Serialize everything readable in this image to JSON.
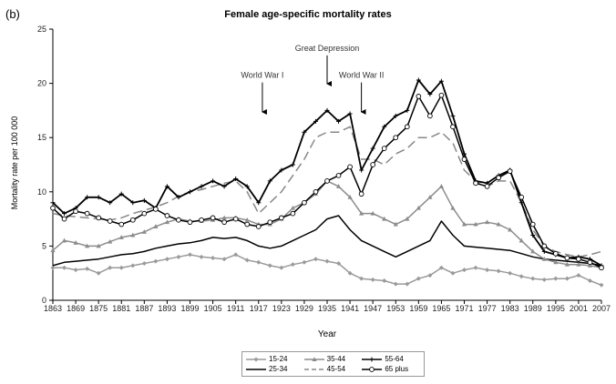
{
  "chart_data": {
    "type": "line",
    "panel_label": "(b)",
    "title": "Female age-specific mortality rates",
    "xlabel": "Year",
    "ylabel": "Mortality rate per 100 000",
    "xlim": [
      1863,
      2007
    ],
    "ylim": [
      0,
      25
    ],
    "yticks": [
      0,
      5,
      10,
      15,
      20,
      25
    ],
    "xticks": [
      1863,
      1869,
      1875,
      1881,
      1887,
      1893,
      1899,
      1905,
      1911,
      1917,
      1923,
      1929,
      1935,
      1941,
      1947,
      1953,
      1959,
      1965,
      1971,
      1977,
      1983,
      1989,
      1995,
      2001,
      2007
    ],
    "grid": false,
    "legend_position": "bottom",
    "annotations": [
      {
        "text": "World War I",
        "x": 1918,
        "y": 20.5,
        "arrow_to": 17.2
      },
      {
        "text": "Great Depression",
        "x": 1935,
        "y": 23.0,
        "arrow_to": 19.8
      },
      {
        "text": "World War II",
        "x": 1944,
        "y": 20.5,
        "arrow_to": 17.2
      }
    ],
    "series": [
      {
        "name": "15-24",
        "color": "#9a9a9a",
        "dash": "",
        "marker": "diamond",
        "x": [
          1863,
          1866,
          1869,
          1872,
          1875,
          1878,
          1881,
          1884,
          1887,
          1890,
          1893,
          1896,
          1899,
          1902,
          1905,
          1908,
          1911,
          1914,
          1917,
          1920,
          1923,
          1926,
          1929,
          1932,
          1935,
          1938,
          1941,
          1944,
          1947,
          1950,
          1953,
          1956,
          1959,
          1962,
          1965,
          1968,
          1971,
          1974,
          1977,
          1980,
          1983,
          1986,
          1989,
          1992,
          1995,
          1998,
          2001,
          2004,
          2007
        ],
        "y": [
          3.0,
          3.0,
          2.8,
          2.9,
          2.5,
          3.0,
          3.0,
          3.2,
          3.4,
          3.6,
          3.8,
          4.0,
          4.2,
          4.0,
          3.9,
          3.8,
          4.2,
          3.7,
          3.5,
          3.2,
          3.0,
          3.3,
          3.5,
          3.8,
          3.6,
          3.4,
          2.5,
          2.0,
          1.9,
          1.8,
          1.5,
          1.5,
          2.0,
          2.3,
          3.0,
          2.5,
          2.8,
          3.0,
          2.8,
          2.7,
          2.5,
          2.2,
          2.0,
          1.9,
          2.0,
          2.0,
          2.3,
          1.8,
          1.4
        ]
      },
      {
        "name": "25-34",
        "color": "#000000",
        "dash": "",
        "marker": "",
        "x": [
          1863,
          1866,
          1869,
          1872,
          1875,
          1878,
          1881,
          1884,
          1887,
          1890,
          1893,
          1896,
          1899,
          1902,
          1905,
          1908,
          1911,
          1914,
          1917,
          1920,
          1923,
          1926,
          1929,
          1932,
          1935,
          1938,
          1941,
          1944,
          1947,
          1950,
          1953,
          1956,
          1959,
          1962,
          1965,
          1968,
          1971,
          1974,
          1977,
          1980,
          1983,
          1986,
          1989,
          1992,
          1995,
          1998,
          2001,
          2004,
          2007
        ],
        "y": [
          3.2,
          3.5,
          3.6,
          3.7,
          3.8,
          4.0,
          4.2,
          4.3,
          4.5,
          4.8,
          5.0,
          5.2,
          5.3,
          5.5,
          5.8,
          5.7,
          5.8,
          5.5,
          5.0,
          4.8,
          5.0,
          5.5,
          6.0,
          6.5,
          7.5,
          7.8,
          6.5,
          5.5,
          5.0,
          4.5,
          4.0,
          4.5,
          5.0,
          5.5,
          7.3,
          6.0,
          5.0,
          4.9,
          4.8,
          4.7,
          4.6,
          4.3,
          4.0,
          3.8,
          3.7,
          3.6,
          3.5,
          3.4,
          3.2
        ]
      },
      {
        "name": "35-44",
        "color": "#8c8c8c",
        "dash": "",
        "marker": "triangle",
        "x": [
          1863,
          1866,
          1869,
          1872,
          1875,
          1878,
          1881,
          1884,
          1887,
          1890,
          1893,
          1896,
          1899,
          1902,
          1905,
          1908,
          1911,
          1914,
          1917,
          1920,
          1923,
          1926,
          1929,
          1932,
          1935,
          1938,
          1941,
          1944,
          1947,
          1950,
          1953,
          1956,
          1959,
          1962,
          1965,
          1968,
          1971,
          1974,
          1977,
          1980,
          1983,
          1986,
          1989,
          1992,
          1995,
          1998,
          2001,
          2004,
          2007
        ],
        "y": [
          4.6,
          5.5,
          5.3,
          5.0,
          5.0,
          5.4,
          5.8,
          6.0,
          6.3,
          6.8,
          7.2,
          7.5,
          7.3,
          7.3,
          7.4,
          7.6,
          7.6,
          7.4,
          7.0,
          7.0,
          7.5,
          8.5,
          9.0,
          9.8,
          11.0,
          10.5,
          9.5,
          8.0,
          8.0,
          7.5,
          7.0,
          7.5,
          8.5,
          9.5,
          10.5,
          8.5,
          7.0,
          7.0,
          7.2,
          7.0,
          6.5,
          5.5,
          4.5,
          3.8,
          3.5,
          3.3,
          3.3,
          3.2,
          3.0
        ]
      },
      {
        "name": "45-54",
        "color": "#888888",
        "dash": "10,5",
        "marker": "",
        "x": [
          1863,
          1866,
          1869,
          1872,
          1875,
          1878,
          1881,
          1884,
          1887,
          1890,
          1893,
          1896,
          1899,
          1902,
          1905,
          1908,
          1911,
          1914,
          1917,
          1920,
          1923,
          1926,
          1929,
          1932,
          1935,
          1938,
          1941,
          1944,
          1947,
          1950,
          1953,
          1956,
          1959,
          1962,
          1965,
          1968,
          1971,
          1974,
          1977,
          1980,
          1983,
          1986,
          1989,
          1992,
          1995,
          1998,
          2001,
          2004,
          2007
        ],
        "y": [
          8.0,
          7.8,
          7.7,
          7.6,
          7.5,
          7.4,
          7.6,
          8.0,
          8.3,
          8.6,
          9.0,
          9.6,
          10.0,
          10.2,
          10.5,
          10.8,
          11.0,
          10.0,
          8.0,
          9.0,
          10.0,
          11.5,
          13.0,
          15.0,
          15.5,
          15.5,
          16.0,
          13.0,
          13.0,
          12.5,
          13.5,
          14.0,
          15.0,
          15.0,
          15.5,
          14.5,
          12.0,
          11.0,
          10.5,
          11.0,
          11.0,
          9.0,
          6.5,
          5.0,
          4.5,
          4.2,
          4.0,
          4.2,
          4.5
        ]
      },
      {
        "name": "55-64",
        "color": "#000000",
        "dash": "",
        "marker": "plus",
        "x": [
          1863,
          1866,
          1869,
          1872,
          1875,
          1878,
          1881,
          1884,
          1887,
          1890,
          1893,
          1896,
          1899,
          1902,
          1905,
          1908,
          1911,
          1914,
          1917,
          1920,
          1923,
          1926,
          1929,
          1932,
          1935,
          1938,
          1941,
          1944,
          1947,
          1950,
          1953,
          1956,
          1959,
          1962,
          1965,
          1968,
          1971,
          1974,
          1977,
          1980,
          1983,
          1986,
          1989,
          1992,
          1995,
          1998,
          2001,
          2004,
          2007
        ],
        "y": [
          9.0,
          8.0,
          8.5,
          9.5,
          9.5,
          9.0,
          9.8,
          9.0,
          9.2,
          8.5,
          10.5,
          9.5,
          10.0,
          10.5,
          11.0,
          10.5,
          11.2,
          10.5,
          9.0,
          11.0,
          12.0,
          12.5,
          15.5,
          16.5,
          17.5,
          16.5,
          17.2,
          12.0,
          14.0,
          16.0,
          17.0,
          17.5,
          20.3,
          19.0,
          20.2,
          17.0,
          13.5,
          11.0,
          10.8,
          11.5,
          12.0,
          9.0,
          6.0,
          4.5,
          4.2,
          3.9,
          4.0,
          3.8,
          3.2
        ]
      },
      {
        "name": "65 plus",
        "color": "#000000",
        "dash": "",
        "marker": "circle",
        "x": [
          1863,
          1866,
          1869,
          1872,
          1875,
          1878,
          1881,
          1884,
          1887,
          1890,
          1893,
          1896,
          1899,
          1902,
          1905,
          1908,
          1911,
          1914,
          1917,
          1920,
          1923,
          1926,
          1929,
          1932,
          1935,
          1938,
          1941,
          1944,
          1947,
          1950,
          1953,
          1956,
          1959,
          1962,
          1965,
          1968,
          1971,
          1974,
          1977,
          1980,
          1983,
          1986,
          1989,
          1992,
          1995,
          1998,
          2001,
          2004,
          2007
        ],
        "y": [
          8.5,
          7.5,
          8.2,
          8.0,
          7.6,
          7.3,
          7.0,
          7.4,
          8.0,
          8.4,
          7.8,
          7.4,
          7.2,
          7.4,
          7.6,
          7.2,
          7.5,
          7.0,
          6.8,
          7.2,
          7.6,
          8.0,
          9.0,
          10.0,
          11.0,
          11.5,
          12.3,
          9.8,
          12.5,
          14.0,
          15.0,
          16.0,
          18.8,
          17.0,
          18.9,
          16.0,
          13.0,
          10.8,
          10.5,
          11.3,
          11.9,
          9.5,
          7.0,
          5.0,
          4.3,
          3.9,
          3.8,
          3.5,
          3.0
        ]
      }
    ]
  }
}
